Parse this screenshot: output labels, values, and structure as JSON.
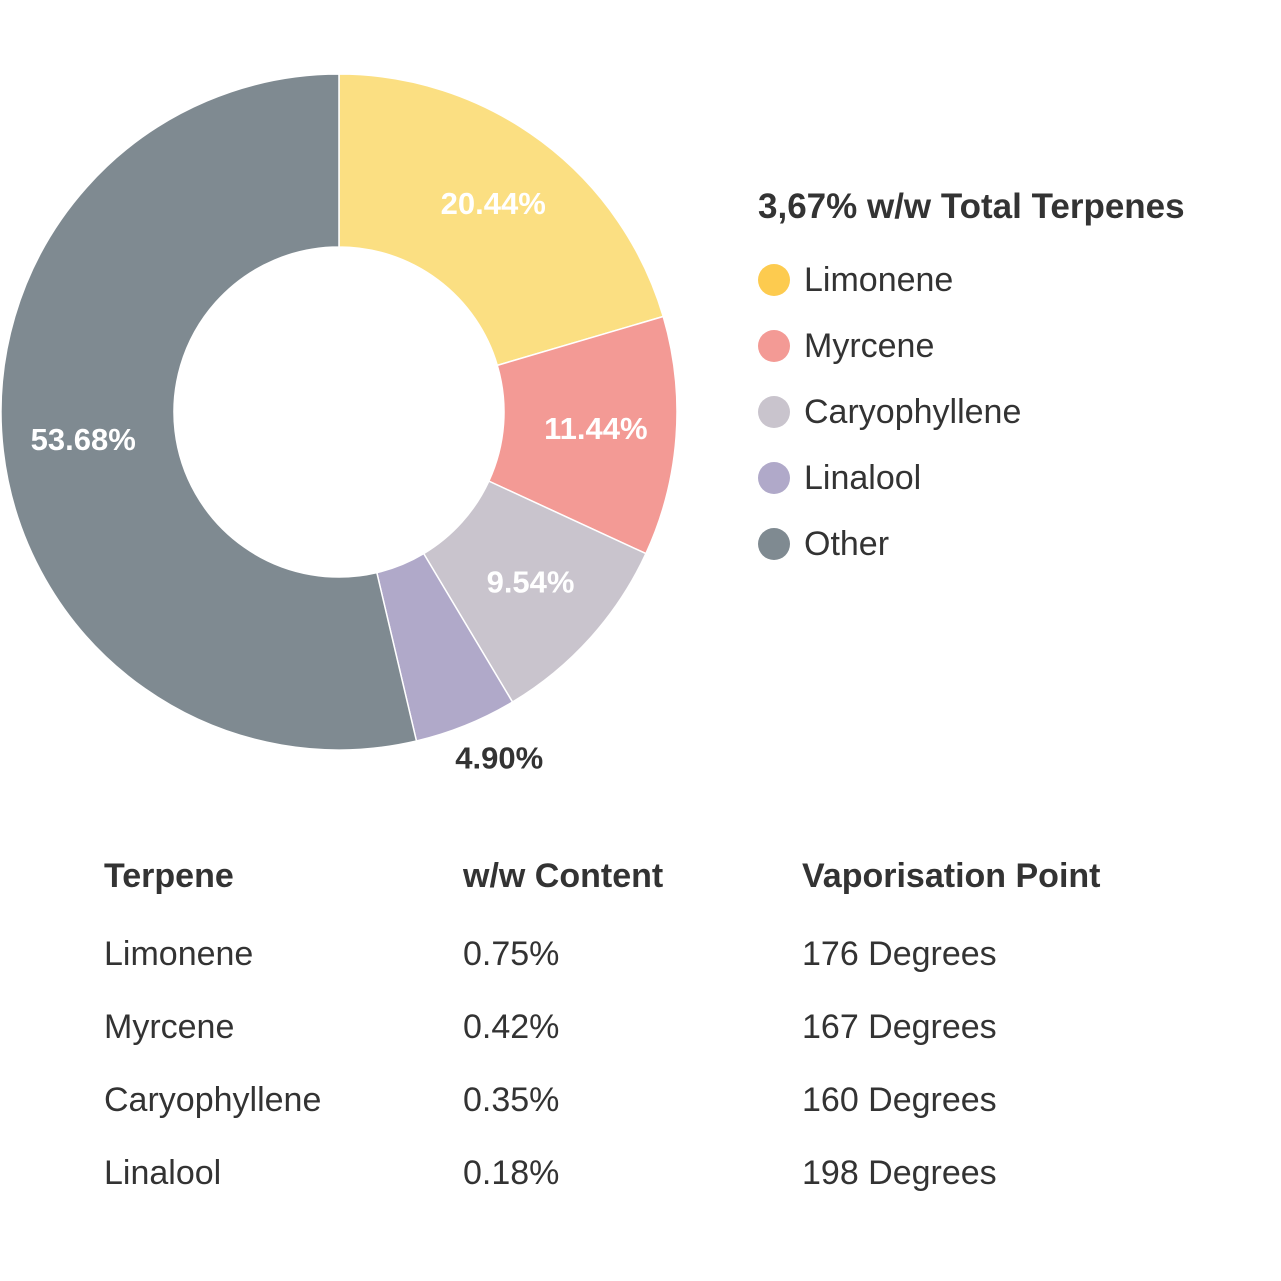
{
  "chart_data": {
    "type": "pie",
    "variant": "donut",
    "title": "3,67% w/w Total Terpenes",
    "legend_position": "right",
    "slices": [
      {
        "name": "Limonene",
        "value": 20.44,
        "label": "20.44%",
        "color": "#FBDF82",
        "legend_color": "#FDCB4F",
        "label_color": "#ffffff"
      },
      {
        "name": "Myrcene",
        "value": 11.44,
        "label": "11.44%",
        "color": "#F39A95",
        "legend_color": "#F39A95",
        "label_color": "#ffffff"
      },
      {
        "name": "Caryophyllene",
        "value": 9.54,
        "label": "9.54%",
        "color": "#C9C4CD",
        "legend_color": "#C9C4CD",
        "label_color": "#ffffff"
      },
      {
        "name": "Linalool",
        "value": 4.9,
        "label": "4.90%",
        "color": "#B0A9C9",
        "legend_color": "#B0A9C9",
        "label_color": "#333333",
        "label_outside": true
      },
      {
        "name": "Other",
        "value": 53.68,
        "label": "53.68%",
        "color": "#7F8A91",
        "legend_color": "#7F8A91",
        "label_color": "#ffffff"
      }
    ]
  },
  "table": {
    "headers": [
      "Terpene",
      "w/w Content",
      "Vaporisation Point"
    ],
    "rows": [
      [
        "Limonene",
        "0.75%",
        "176 Degrees"
      ],
      [
        "Myrcene",
        "0.42%",
        "167 Degrees"
      ],
      [
        "Caryophyllene",
        "0.35%",
        "160 Degrees"
      ],
      [
        "Linalool",
        "0.18%",
        "198 Degrees"
      ]
    ]
  }
}
